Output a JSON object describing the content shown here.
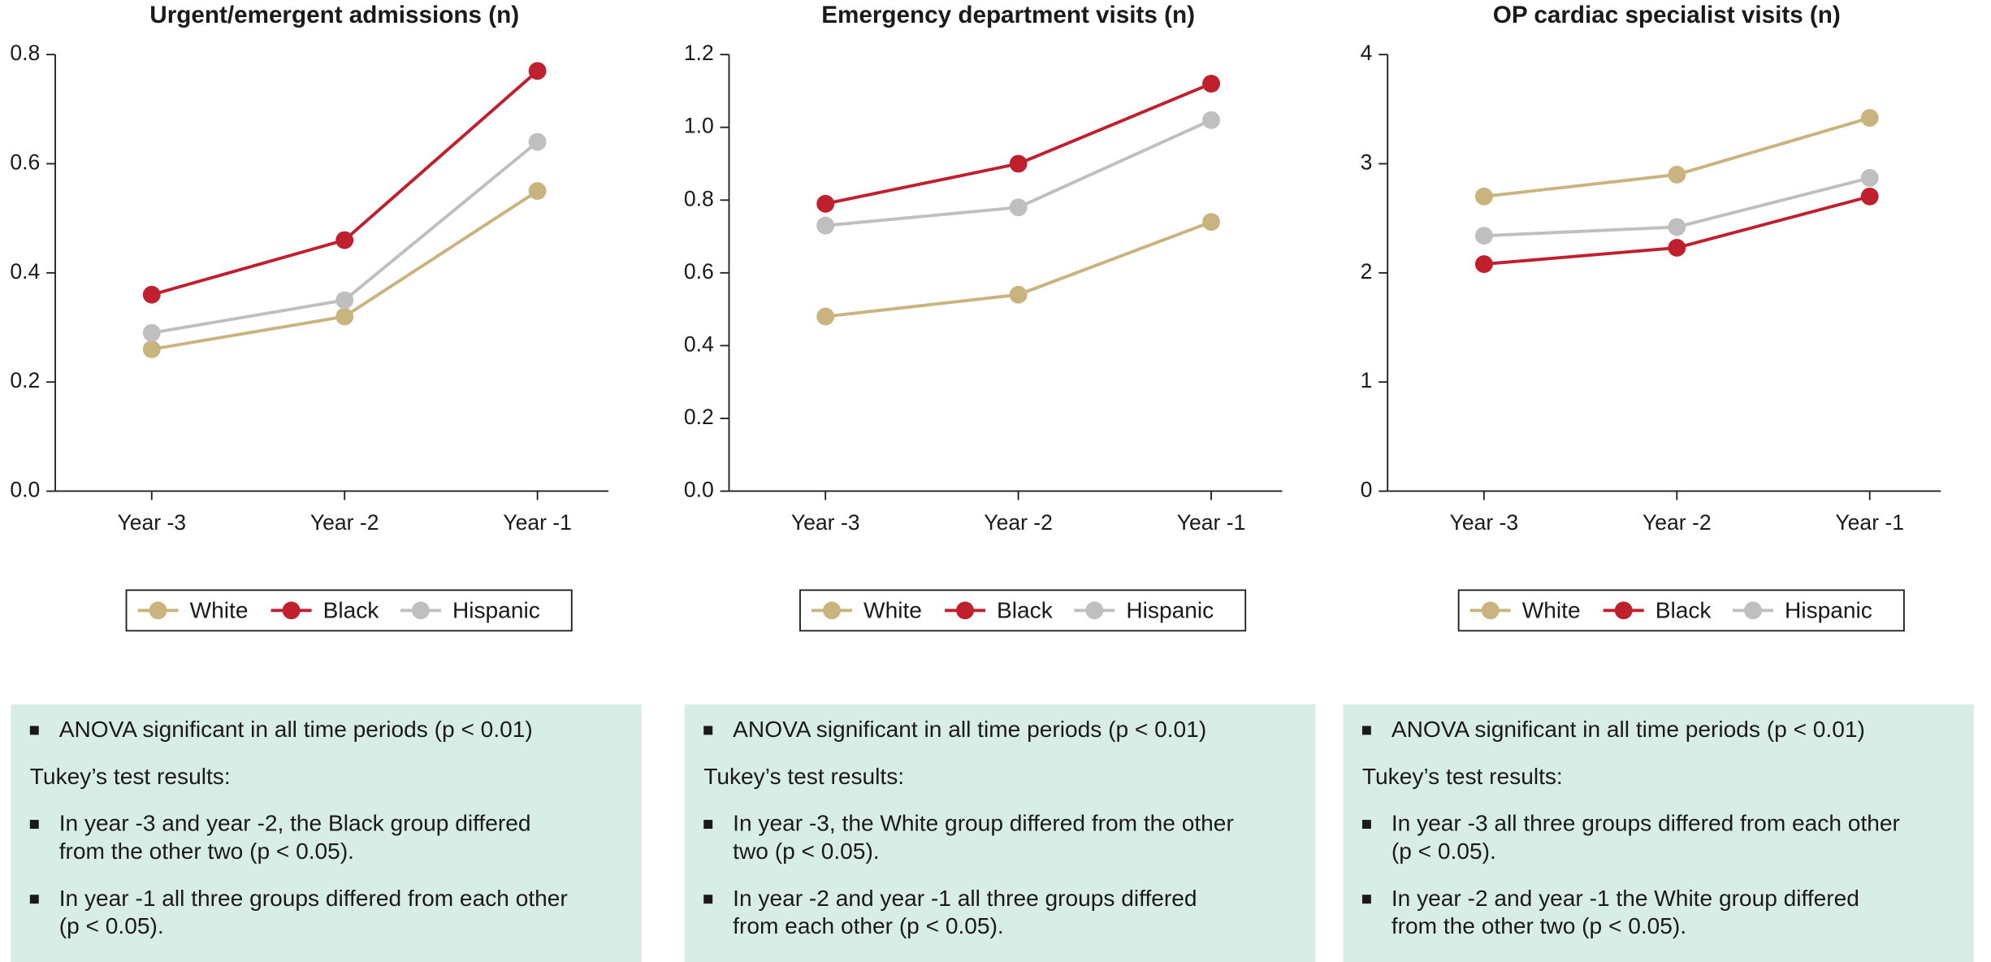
{
  "chart_data": [
    {
      "type": "line",
      "title": "Urgent/emergent admissions (n)",
      "categories": [
        "Year -3",
        "Year -2",
        "Year -1"
      ],
      "series": [
        {
          "name": "White",
          "color": "#c9b37e",
          "values": [
            0.26,
            0.32,
            0.55
          ]
        },
        {
          "name": "Black",
          "color": "#c0202e",
          "values": [
            0.36,
            0.46,
            0.77
          ]
        },
        {
          "name": "Hispanic",
          "color": "#bfbfbf",
          "values": [
            0.29,
            0.35,
            0.64
          ]
        }
      ],
      "ylim": [
        0,
        0.8
      ],
      "yticks": [
        {
          "value": 0,
          "label": "0.0"
        },
        0.2,
        0.4,
        0.6,
        0.8
      ]
    },
    {
      "type": "line",
      "title": "Emergency department visits (n)",
      "categories": [
        "Year -3",
        "Year -2",
        "Year -1"
      ],
      "series": [
        {
          "name": "White",
          "color": "#c9b37e",
          "values": [
            0.48,
            0.54,
            0.74
          ]
        },
        {
          "name": "Black",
          "color": "#c0202e",
          "values": [
            0.79,
            0.9,
            1.12
          ]
        },
        {
          "name": "Hispanic",
          "color": "#bfbfbf",
          "values": [
            0.73,
            0.78,
            1.02
          ]
        }
      ],
      "ylim": [
        0,
        1.2
      ],
      "yticks": [
        {
          "value": 0,
          "label": "0.0"
        },
        0.2,
        0.4,
        0.6,
        0.8,
        {
          "value": 1,
          "label": "1.0"
        },
        1.2
      ]
    },
    {
      "type": "line",
      "title": "OP cardiac specialist visits (n)",
      "categories": [
        "Year -3",
        "Year -2",
        "Year -1"
      ],
      "series": [
        {
          "name": "White",
          "color": "#c9b37e",
          "values": [
            2.7,
            2.9,
            3.42
          ]
        },
        {
          "name": "Black",
          "color": "#c0202e",
          "values": [
            2.08,
            2.23,
            2.7
          ]
        },
        {
          "name": "Hispanic",
          "color": "#bfbfbf",
          "values": [
            2.34,
            2.42,
            2.87
          ]
        }
      ],
      "ylim": [
        0,
        4
      ],
      "yticks": [
        0,
        1,
        2,
        3,
        4
      ]
    }
  ],
  "notes": [
    {
      "items": [
        {
          "bullet": true,
          "lines": [
            "ANOVA significant in all time periods (p < 0.01)"
          ]
        },
        {
          "bullet": false,
          "lines": [
            "Tukey’s test results:"
          ]
        },
        {
          "bullet": true,
          "lines": [
            "In year -3 and year -2, the Black group differed",
            "from the other two (p < 0.05)."
          ]
        },
        {
          "bullet": true,
          "lines": [
            "In year -1 all three groups differed from each other",
            "(p < 0.05)."
          ]
        }
      ]
    },
    {
      "items": [
        {
          "bullet": true,
          "lines": [
            "ANOVA significant in all time periods (p < 0.01)"
          ]
        },
        {
          "bullet": false,
          "lines": [
            "Tukey’s test results:"
          ]
        },
        {
          "bullet": true,
          "lines": [
            "In year -3, the White group differed from the other",
            "two (p < 0.05)."
          ]
        },
        {
          "bullet": true,
          "lines": [
            "In year -2 and year -1 all three groups differed",
            "from each other (p < 0.05)."
          ]
        }
      ]
    },
    {
      "items": [
        {
          "bullet": true,
          "lines": [
            "ANOVA significant in all time periods (p < 0.01)"
          ]
        },
        {
          "bullet": false,
          "lines": [
            "Tukey’s test results:"
          ]
        },
        {
          "bullet": true,
          "lines": [
            "In year -3 all three groups differed from each other",
            "(p < 0.05)."
          ]
        },
        {
          "bullet": true,
          "lines": [
            "In year -2 and year -1 the White group differed",
            "from the other two (p < 0.05)."
          ]
        }
      ]
    }
  ]
}
